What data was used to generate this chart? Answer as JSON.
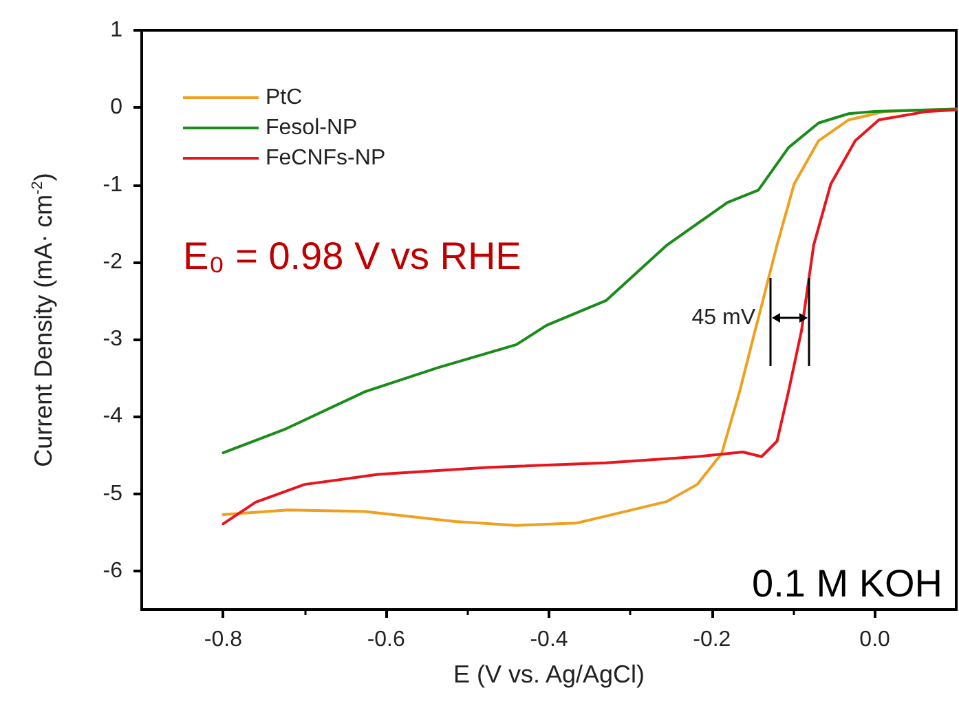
{
  "chart_data": {
    "type": "line",
    "xlabel": "E (V vs. Ag/AgCl)",
    "ylabel": "Current Density (mA· cm$^{-2}$)",
    "xlim": [
      -0.9,
      0.1
    ],
    "xticks": [
      -0.8,
      -0.6,
      -0.4,
      -0.2,
      {
        "value": 0,
        "label": "0.0"
      }
    ],
    "ylim": [
      -6.5,
      1
    ],
    "yticks": [
      -6,
      -5,
      -4,
      -3,
      -2,
      -1,
      0,
      1
    ],
    "grid": false,
    "legend": "top left",
    "marker": "none",
    "line_style": "solid",
    "annotations": [
      "E₀ = 0.98 V vs RHE",
      "0.1 M KOH",
      "45 mV"
    ],
    "series": [
      {
        "name": "PtC",
        "color": "#f0a020",
        "x": [
          -0.8,
          -0.72,
          -0.626,
          -0.515,
          -0.44,
          -0.366,
          -0.314,
          -0.255,
          -0.218,
          -0.188,
          -0.166,
          -0.147,
          -0.143,
          -0.12,
          -0.099,
          -0.069,
          -0.032,
          0.013,
          0.1
        ],
        "values": [
          -5.27,
          -5.21,
          -5.23,
          -5.36,
          -5.41,
          -5.38,
          -5.25,
          -5.1,
          -4.88,
          -4.48,
          -3.68,
          -2.89,
          -2.73,
          -1.78,
          -0.99,
          -0.43,
          -0.16,
          -0.05,
          -0.02
        ]
      },
      {
        "name": "Fesol-NP",
        "color": "#1a8c1a",
        "x": [
          -0.8,
          -0.723,
          -0.626,
          -0.537,
          -0.44,
          -0.403,
          -0.33,
          -0.255,
          -0.181,
          -0.143,
          -0.106,
          -0.069,
          -0.032,
          0.0,
          0.1
        ],
        "values": [
          -4.47,
          -4.16,
          -3.68,
          -3.37,
          -3.07,
          -2.82,
          -2.5,
          -1.78,
          -1.23,
          -1.07,
          -0.52,
          -0.2,
          -0.08,
          -0.05,
          -0.02
        ]
      },
      {
        "name": "FeCNFs-NP",
        "color": "#e8141e",
        "x": [
          -0.8,
          -0.76,
          -0.7,
          -0.61,
          -0.477,
          -0.33,
          -0.218,
          -0.162,
          -0.139,
          -0.12,
          -0.106,
          -0.09,
          -0.075,
          -0.054,
          -0.024,
          0.005,
          0.065,
          0.1
        ],
        "values": [
          -5.39,
          -5.11,
          -4.88,
          -4.75,
          -4.66,
          -4.6,
          -4.52,
          -4.46,
          -4.52,
          -4.32,
          -3.68,
          -2.89,
          -1.78,
          -0.99,
          -0.43,
          -0.16,
          -0.05,
          -0.03
        ]
      }
    ]
  }
}
